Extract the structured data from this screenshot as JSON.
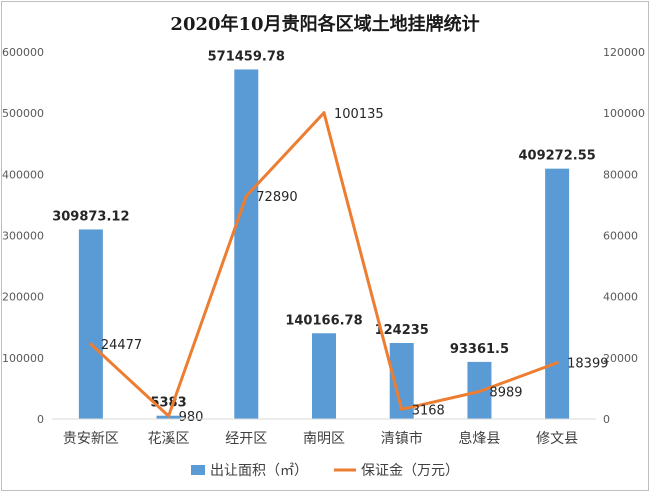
{
  "chart_data": {
    "type": "bar+line",
    "title": "2020年10月贵阳各区域土地挂牌统计",
    "categories": [
      "贵安新区",
      "花溪区",
      "经开区",
      "南明区",
      "清镇市",
      "息烽县",
      "修文县"
    ],
    "series": [
      {
        "name": "出让面积（㎡）",
        "type": "bar",
        "axis": "left",
        "color": "#5b9bd5",
        "values": [
          309873.12,
          5383,
          571459.78,
          140166.78,
          124235,
          93361.5,
          409272.55
        ],
        "labels": [
          "309873.12",
          "5383",
          "571459.78",
          "140166.78",
          "124235",
          "93361.5",
          "409272.55"
        ]
      },
      {
        "name": "保证金（万元）",
        "type": "line",
        "axis": "right",
        "color": "#ed7d31",
        "values": [
          24477,
          980,
          72890,
          100135,
          3168,
          8989,
          18399
        ],
        "labels": [
          "24477",
          "980",
          "72890",
          "100135",
          "3168",
          "8989",
          "18399"
        ]
      }
    ],
    "y_left": {
      "min": 0,
      "max": 600000,
      "ticks": [
        "0",
        "100000",
        "200000",
        "300000",
        "400000",
        "500000",
        "600000"
      ]
    },
    "y_right": {
      "min": 0,
      "max": 120000,
      "ticks": [
        "0",
        "20000",
        "40000",
        "60000",
        "80000",
        "100000",
        "120000"
      ]
    },
    "grid": false,
    "legend": "bottom"
  }
}
